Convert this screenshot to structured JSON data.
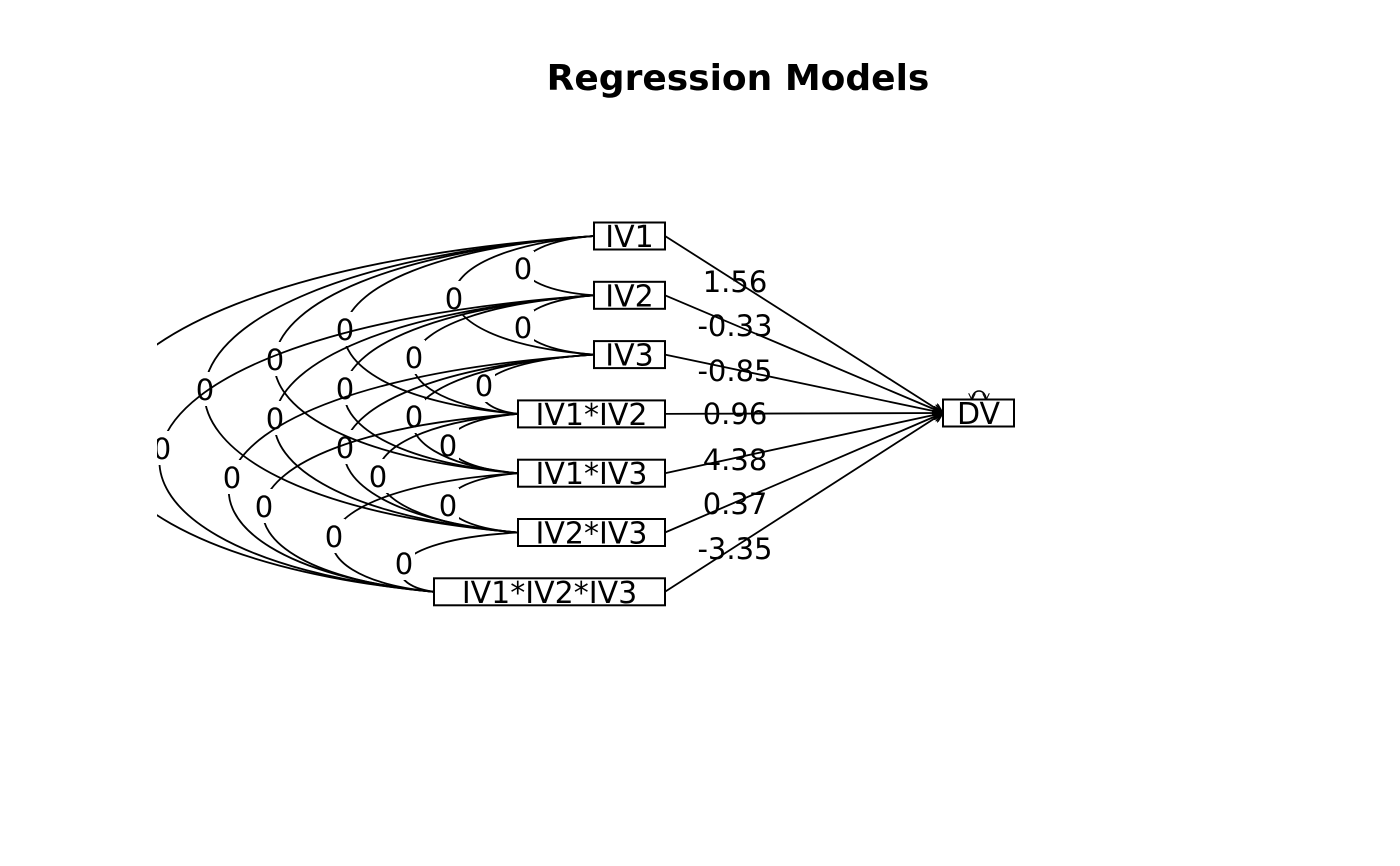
{
  "title": "Regression Models",
  "nodes": [
    {
      "id": "IV1",
      "label": "IV1"
    },
    {
      "id": "IV2",
      "label": "IV2"
    },
    {
      "id": "IV3",
      "label": "IV3"
    },
    {
      "id": "IV1*IV2",
      "label": "IV1*IV2"
    },
    {
      "id": "IV1*IV3",
      "label": "IV1*IV3"
    },
    {
      "id": "IV2*IV3",
      "label": "IV2*IV3"
    },
    {
      "id": "IV1*IV2*IV3",
      "label": "IV1*IV2*IV3"
    }
  ],
  "outcome": {
    "id": "DV",
    "label": "DV"
  },
  "paths": [
    {
      "from": "IV1",
      "to": "DV",
      "label": "1.56"
    },
    {
      "from": "IV2",
      "to": "DV",
      "label": "-0.33"
    },
    {
      "from": "IV3",
      "to": "DV",
      "label": "-0.85"
    },
    {
      "from": "IV1*IV2",
      "to": "DV",
      "label": "0.96"
    },
    {
      "from": "IV1*IV3",
      "to": "DV",
      "label": "4.38"
    },
    {
      "from": "IV2*IV3",
      "to": "DV",
      "label": "0.37"
    },
    {
      "from": "IV1*IV2*IV3",
      "to": "DV",
      "label": "-3.35"
    }
  ],
  "covariances": [
    {
      "a": "IV1",
      "b": "IV2",
      "label": "0"
    },
    {
      "a": "IV2",
      "b": "IV3",
      "label": "0"
    },
    {
      "a": "IV3",
      "b": "IV1*IV2",
      "label": "0"
    },
    {
      "a": "IV1*IV2",
      "b": "IV1*IV3",
      "label": "0"
    },
    {
      "a": "IV1*IV3",
      "b": "IV2*IV3",
      "label": "0"
    },
    {
      "a": "IV2*IV3",
      "b": "IV1*IV2*IV3",
      "label": "0"
    },
    {
      "a": "IV1",
      "b": "IV3",
      "label": "0"
    },
    {
      "a": "IV2",
      "b": "IV1*IV2",
      "label": "0"
    },
    {
      "a": "IV3",
      "b": "IV1*IV3",
      "label": "0"
    },
    {
      "a": "IV1*IV2",
      "b": "IV2*IV3",
      "label": "0"
    },
    {
      "a": "IV1*IV3",
      "b": "IV1*IV2*IV3",
      "label": "0"
    },
    {
      "a": "IV1",
      "b": "IV1*IV2",
      "label": "0"
    },
    {
      "a": "IV2",
      "b": "IV1*IV3",
      "label": "0"
    },
    {
      "a": "IV3",
      "b": "IV2*IV3",
      "label": "0"
    },
    {
      "a": "IV1*IV2",
      "b": "IV1*IV2*IV3",
      "label": "0"
    },
    {
      "a": "IV1",
      "b": "IV1*IV3",
      "label": "0"
    },
    {
      "a": "IV2",
      "b": "IV2*IV3",
      "label": "0"
    },
    {
      "a": "IV3",
      "b": "IV1*IV2*IV3",
      "label": "0"
    },
    {
      "a": "IV1",
      "b": "IV2*IV3",
      "label": "0"
    },
    {
      "a": "IV2",
      "b": "IV1*IV2*IV3",
      "label": "0"
    },
    {
      "a": "IV1",
      "b": "IV1*IV2*IV3",
      "label": "0"
    }
  ],
  "residual_variance_on": "DV"
}
